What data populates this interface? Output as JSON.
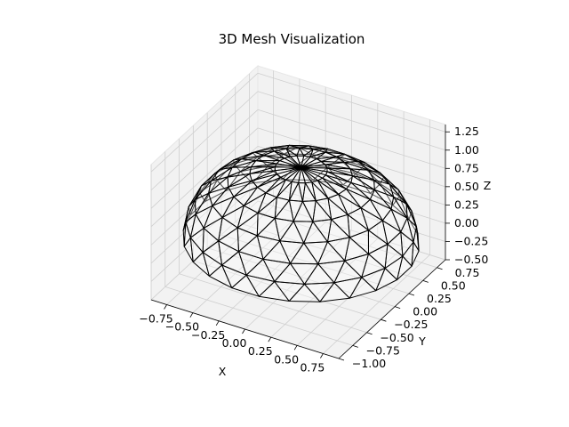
{
  "chart_data": {
    "type": "3d-mesh",
    "title": "3D Mesh Visualization",
    "xlabel": "X",
    "ylabel": "Y",
    "zlabel": "Z",
    "xlim": [
      -0.9,
      0.9
    ],
    "ylim": [
      -1.0,
      0.9
    ],
    "zlim": [
      -0.5,
      1.35
    ],
    "xticks": [
      "−0.75",
      "−0.50",
      "−0.25",
      "0.00",
      "0.25",
      "0.50",
      "0.75"
    ],
    "yticks": [
      "−1.00",
      "−0.75",
      "−0.50",
      "−0.25",
      "0.00",
      "0.25",
      "0.50",
      "0.75"
    ],
    "zticks": [
      "−0.50",
      "−0.25",
      "0.00",
      "0.25",
      "0.50",
      "0.75",
      "1.00",
      "1.25"
    ],
    "xtick_values": [
      -0.75,
      -0.5,
      -0.25,
      0.0,
      0.25,
      0.5,
      0.75
    ],
    "ytick_values": [
      -1.0,
      -0.75,
      -0.5,
      -0.25,
      0.0,
      0.25,
      0.5,
      0.75
    ],
    "ztick_values": [
      -0.5,
      -0.25,
      0.0,
      0.25,
      0.5,
      0.75,
      1.0,
      1.25
    ],
    "grid": true,
    "mesh": {
      "shape": "hemisphere",
      "radius": 1.0,
      "center": [
        0,
        0,
        0
      ],
      "face_color": "#ffffff",
      "edge_color": "#000000"
    },
    "pane_color": "#f2f2f2",
    "grid_color": "#cfcfcf"
  }
}
